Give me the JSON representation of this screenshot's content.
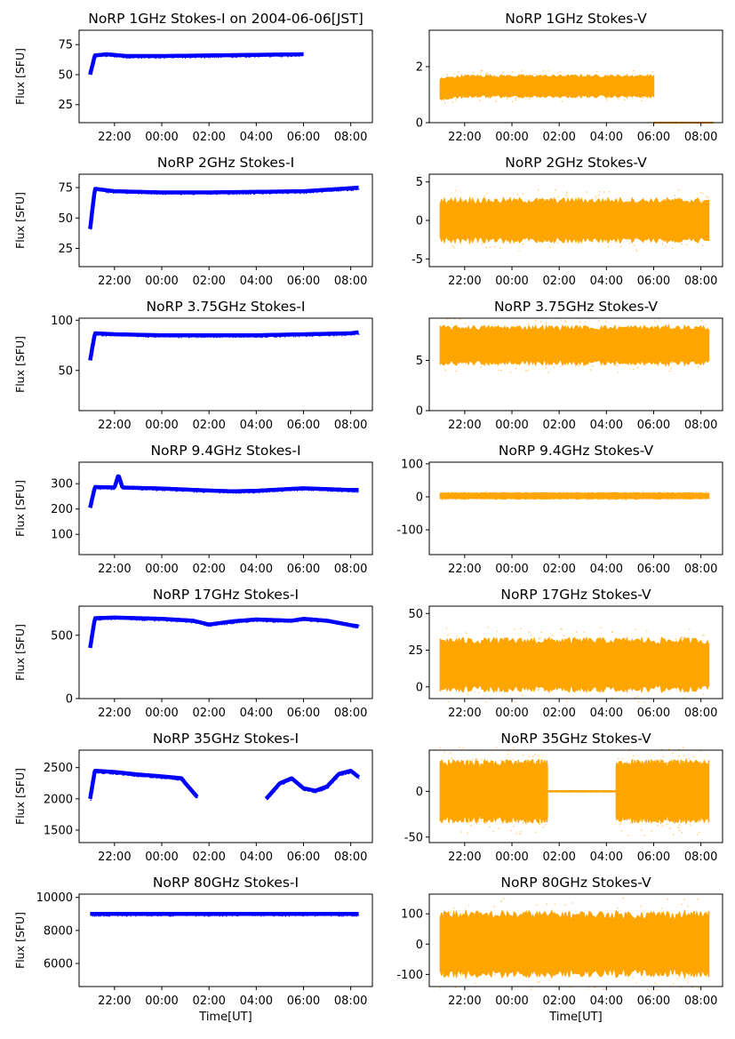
{
  "figure": {
    "xlabel": "Time[UT]",
    "xtick_labels": [
      "22:00",
      "00:00",
      "02:00",
      "04:00",
      "06:00",
      "08:00"
    ],
    "ylabel": "Flux [SFU]"
  },
  "colors": {
    "stokes_i": "#0000ff",
    "stokes_v": "#ffa500"
  },
  "chart_data": [
    {
      "type": "scatter",
      "title": "NoRP 1GHz Stokes-I on 2004-06-06[JST]",
      "ylabel": "Flux [SFU]",
      "ylim": [
        10,
        87
      ],
      "yticks": [
        25,
        50,
        75
      ],
      "segments": [
        {
          "start": "20:58",
          "end": "06:00",
          "points": [
            [
              "20:58",
              50
            ],
            [
              "21:10",
              66
            ],
            [
              "21:40",
              67
            ],
            [
              "22:30",
              65.5
            ],
            [
              "00:00",
              65.5
            ],
            [
              "02:00",
              66
            ],
            [
              "04:00",
              66.5
            ],
            [
              "06:00",
              67
            ]
          ]
        }
      ]
    },
    {
      "type": "scatter",
      "title": "NoRP 1GHz Stokes-V",
      "ylim": [
        0,
        3.3
      ],
      "yticks": [
        0,
        2
      ],
      "segments": [
        {
          "start": "20:58",
          "end": "06:00",
          "points": [
            [
              "20:58",
              1.2
            ],
            [
              "22:00",
              1.3
            ],
            [
              "00:00",
              1.3
            ],
            [
              "02:00",
              1.3
            ],
            [
              "04:00",
              1.3
            ],
            [
              "06:00",
              1.3
            ]
          ],
          "spread": 0.35
        },
        {
          "start": "06:00",
          "end": "08:30",
          "points": [
            [
              "06:00",
              0
            ],
            [
              "08:30",
              0
            ]
          ],
          "spread": 0.01
        }
      ]
    },
    {
      "type": "scatter",
      "title": "NoRP 2GHz Stokes-I",
      "ylabel": "Flux [SFU]",
      "ylim": [
        10,
        86
      ],
      "yticks": [
        25,
        50,
        75
      ],
      "segments": [
        {
          "start": "20:58",
          "end": "08:20",
          "points": [
            [
              "20:58",
              41
            ],
            [
              "21:10",
              74
            ],
            [
              "22:00",
              72
            ],
            [
              "00:00",
              71
            ],
            [
              "02:00",
              71
            ],
            [
              "04:00",
              71.5
            ],
            [
              "06:00",
              72
            ],
            [
              "08:00",
              74.5
            ],
            [
              "08:20",
              75
            ]
          ]
        }
      ]
    },
    {
      "type": "scatter",
      "title": "NoRP 2GHz Stokes-V",
      "ylim": [
        -6,
        6
      ],
      "yticks": [
        -5,
        0,
        5
      ],
      "segments": [
        {
          "start": "20:58",
          "end": "08:20",
          "points": [
            [
              "20:58",
              0
            ],
            [
              "08:20",
              0
            ]
          ],
          "spread": 2.5
        }
      ]
    },
    {
      "type": "scatter",
      "title": "NoRP 3.75GHz Stokes-I",
      "ylabel": "Flux [SFU]",
      "ylim": [
        10,
        102
      ],
      "yticks": [
        50,
        100
      ],
      "segments": [
        {
          "start": "20:58",
          "end": "08:20",
          "points": [
            [
              "20:58",
              60
            ],
            [
              "21:10",
              87
            ],
            [
              "22:00",
              86
            ],
            [
              "00:00",
              85
            ],
            [
              "02:00",
              85
            ],
            [
              "04:00",
              85
            ],
            [
              "06:00",
              86
            ],
            [
              "08:00",
              87
            ],
            [
              "08:20",
              88
            ]
          ]
        }
      ]
    },
    {
      "type": "scatter",
      "title": "NoRP 3.75GHz Stokes-V",
      "ylim": [
        0,
        9.2
      ],
      "yticks": [
        0,
        5
      ],
      "segments": [
        {
          "start": "20:58",
          "end": "08:20",
          "points": [
            [
              "20:58",
              6.5
            ],
            [
              "08:20",
              6.5
            ]
          ],
          "spread": 1.7
        }
      ]
    },
    {
      "type": "scatter",
      "title": "NoRP 9.4GHz Stokes-I",
      "ylabel": "Flux [SFU]",
      "ylim": [
        20,
        385
      ],
      "yticks": [
        100,
        200,
        300
      ],
      "segments": [
        {
          "start": "20:58",
          "end": "08:20",
          "points": [
            [
              "20:58",
              205
            ],
            [
              "21:10",
              287
            ],
            [
              "22:00",
              285
            ],
            [
              "22:10",
              335
            ],
            [
              "22:20",
              285
            ],
            [
              "00:00",
              281
            ],
            [
              "02:00",
              273
            ],
            [
              "03:00",
              270
            ],
            [
              "04:00",
              272
            ],
            [
              "06:00",
              282
            ],
            [
              "08:00",
              275
            ],
            [
              "08:20",
              275
            ]
          ]
        }
      ]
    },
    {
      "type": "scatter",
      "title": "NoRP 9.4GHz Stokes-V",
      "ylim": [
        -175,
        105
      ],
      "yticks": [
        -100,
        0,
        100
      ],
      "segments": [
        {
          "start": "20:58",
          "end": "08:20",
          "points": [
            [
              "20:58",
              3
            ],
            [
              "08:20",
              3
            ]
          ],
          "spread": 8
        }
      ]
    },
    {
      "type": "scatter",
      "title": "NoRP 17GHz Stokes-I",
      "ylabel": "Flux [SFU]",
      "ylim": [
        0,
        730
      ],
      "yticks": [
        0,
        500
      ],
      "segments": [
        {
          "start": "20:58",
          "end": "08:20",
          "points": [
            [
              "20:58",
              400
            ],
            [
              "21:10",
              635
            ],
            [
              "22:00",
              640
            ],
            [
              "00:00",
              630
            ],
            [
              "01:20",
              615
            ],
            [
              "02:00",
              585
            ],
            [
              "03:00",
              610
            ],
            [
              "04:00",
              625
            ],
            [
              "05:30",
              615
            ],
            [
              "06:00",
              630
            ],
            [
              "07:00",
              615
            ],
            [
              "08:00",
              580
            ],
            [
              "08:20",
              570
            ]
          ]
        }
      ]
    },
    {
      "type": "scatter",
      "title": "NoRP 17GHz Stokes-V",
      "ylim": [
        -8,
        55
      ],
      "yticks": [
        0,
        25,
        50
      ],
      "segments": [
        {
          "start": "20:58",
          "end": "08:20",
          "points": [
            [
              "20:58",
              15
            ],
            [
              "08:20",
              15
            ]
          ],
          "spread": 16
        }
      ]
    },
    {
      "type": "scatter",
      "title": "NoRP 35GHz Stokes-I",
      "ylabel": "Flux [SFU]",
      "ylim": [
        1300,
        2780
      ],
      "yticks": [
        1500,
        2000,
        2500
      ],
      "segments": [
        {
          "start": "20:58",
          "end": "01:30",
          "points": [
            [
              "20:58",
              2000
            ],
            [
              "21:10",
              2450
            ],
            [
              "22:00",
              2430
            ],
            [
              "23:00",
              2390
            ],
            [
              "00:00",
              2360
            ],
            [
              "00:50",
              2330
            ],
            [
              "01:00",
              2250
            ],
            [
              "01:30",
              2030
            ]
          ]
        },
        {
          "start": "04:25",
          "end": "08:20",
          "points": [
            [
              "04:25",
              2000
            ],
            [
              "05:00",
              2250
            ],
            [
              "05:30",
              2330
            ],
            [
              "06:00",
              2170
            ],
            [
              "06:30",
              2130
            ],
            [
              "07:00",
              2200
            ],
            [
              "07:30",
              2400
            ],
            [
              "08:00",
              2450
            ],
            [
              "08:20",
              2350
            ]
          ]
        }
      ]
    },
    {
      "type": "scatter",
      "title": "NoRP 35GHz Stokes-V",
      "ylim": [
        -56,
        45
      ],
      "yticks": [
        -50,
        0
      ],
      "segments": [
        {
          "start": "20:58",
          "end": "01:30",
          "points": [
            [
              "20:58",
              0
            ],
            [
              "01:30",
              0
            ]
          ],
          "spread": 30
        },
        {
          "start": "01:30",
          "end": "04:25",
          "points": [
            [
              "01:30",
              0
            ],
            [
              "04:25",
              0
            ]
          ],
          "spread": 0.5
        },
        {
          "start": "04:25",
          "end": "08:20",
          "points": [
            [
              "04:25",
              0
            ],
            [
              "08:20",
              0
            ]
          ],
          "spread": 30
        }
      ]
    },
    {
      "type": "scatter",
      "title": "NoRP 80GHz Stokes-I",
      "ylabel": "Flux [SFU]",
      "ylim": [
        4600,
        10200
      ],
      "yticks": [
        6000,
        8000,
        10000
      ],
      "segments": [
        {
          "start": "20:58",
          "end": "08:20",
          "points": [
            [
              "20:58",
              9000
            ],
            [
              "08:20",
              9000
            ]
          ]
        }
      ]
    },
    {
      "type": "scatter",
      "title": "NoRP 80GHz Stokes-V",
      "ylim": [
        -140,
        165
      ],
      "yticks": [
        -100,
        0,
        100
      ],
      "segments": [
        {
          "start": "20:58",
          "end": "08:20",
          "points": [
            [
              "20:58",
              0
            ],
            [
              "08:20",
              0
            ]
          ],
          "spread": 95
        }
      ]
    }
  ]
}
